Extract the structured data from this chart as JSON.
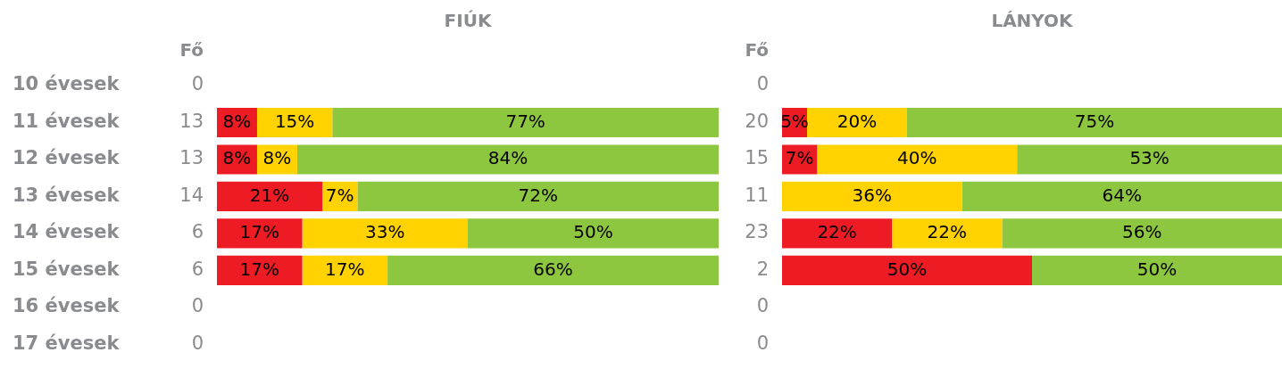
{
  "chart_data": [
    {
      "type": "bar",
      "title": "FIÚK",
      "orientation": "horizontal",
      "stacked": true,
      "categories": [
        "10 évesek",
        "11 évesek",
        "12 évesek",
        "13 évesek",
        "14 évesek",
        "15 évesek",
        "16 évesek",
        "17 évesek"
      ],
      "y2_categories": [
        "0",
        "13",
        "13",
        "14",
        "6",
        "6",
        "0",
        "0"
      ],
      "y2label": "Fő",
      "tick_labels": "y",
      "series": [
        {
          "color": "#ed1c24",
          "values": [
            null,
            8,
            8,
            21,
            17,
            17,
            null,
            null
          ],
          "value_labels": [
            null,
            "8%",
            "8%",
            "21%",
            "17%",
            "17%",
            null,
            null
          ]
        },
        {
          "color": "#ffd200",
          "values": [
            null,
            15,
            8,
            7,
            33,
            17,
            null,
            null
          ],
          "value_labels": [
            null,
            "15%",
            "8%",
            "7%",
            "33%",
            "17%",
            null,
            null
          ]
        },
        {
          "color": "#8dc63f",
          "values": [
            null,
            77,
            84,
            72,
            50,
            66,
            null,
            null
          ],
          "value_labels": [
            null,
            "77%",
            "84%",
            "72%",
            "50%",
            "66%",
            null,
            null
          ]
        }
      ]
    },
    {
      "type": "bar",
      "title": "LÁNYOK",
      "orientation": "horizontal",
      "stacked": true,
      "categories": [
        null,
        null,
        null,
        null,
        null,
        null,
        null,
        null
      ],
      "y2_categories": [
        "0",
        "20",
        "15",
        "11",
        "23",
        "2",
        "0",
        "0"
      ],
      "y2label": "Fő",
      "tick_labels": "y",
      "series": [
        {
          "color": "#ed1c24",
          "values": [
            null,
            5,
            7,
            0,
            22,
            50,
            null,
            null
          ],
          "value_labels": [
            null,
            "5%",
            "7%",
            null,
            "22%",
            "50%",
            null,
            null
          ]
        },
        {
          "color": "#ffd200",
          "values": [
            null,
            20,
            40,
            36,
            22,
            0,
            null,
            null
          ],
          "value_labels": [
            null,
            "20%",
            "40%",
            "36%",
            "22%",
            null,
            null,
            null
          ]
        },
        {
          "color": "#8dc63f",
          "values": [
            null,
            75,
            53,
            64,
            56,
            50,
            null,
            null
          ],
          "value_labels": [
            null,
            "75%",
            "53%",
            "64%",
            "56%",
            "50%",
            null,
            null
          ]
        }
      ]
    }
  ]
}
